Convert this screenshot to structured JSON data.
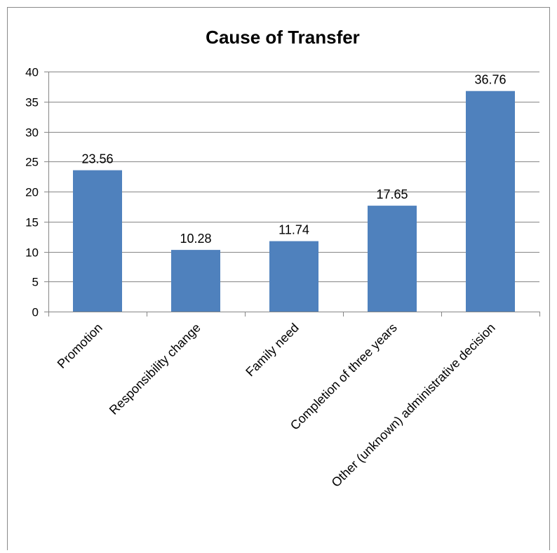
{
  "chart_data": {
    "type": "bar",
    "title": "Cause of Transfer",
    "xlabel": "",
    "ylabel": "",
    "categories": [
      "Promotion",
      "Responsibility change",
      "Family need",
      "Completion of three years",
      "Other (unknown) administrative decision"
    ],
    "values": [
      23.56,
      10.28,
      11.74,
      17.65,
      36.76
    ],
    "data_labels": [
      "23.56",
      "10.28",
      "11.74",
      "17.65",
      "36.76"
    ],
    "ylim": [
      0,
      40
    ],
    "yticks": [
      0,
      5,
      10,
      15,
      20,
      25,
      30,
      35,
      40
    ],
    "ytick_labels": [
      "0",
      "5",
      "10",
      "15",
      "20",
      "25",
      "30",
      "35",
      "40"
    ],
    "grid": true,
    "legend": "none",
    "colors": {
      "bar": "#4f81bd",
      "gridline": "#868686",
      "axis": "#868686",
      "frame": "#8a8a8a"
    }
  }
}
